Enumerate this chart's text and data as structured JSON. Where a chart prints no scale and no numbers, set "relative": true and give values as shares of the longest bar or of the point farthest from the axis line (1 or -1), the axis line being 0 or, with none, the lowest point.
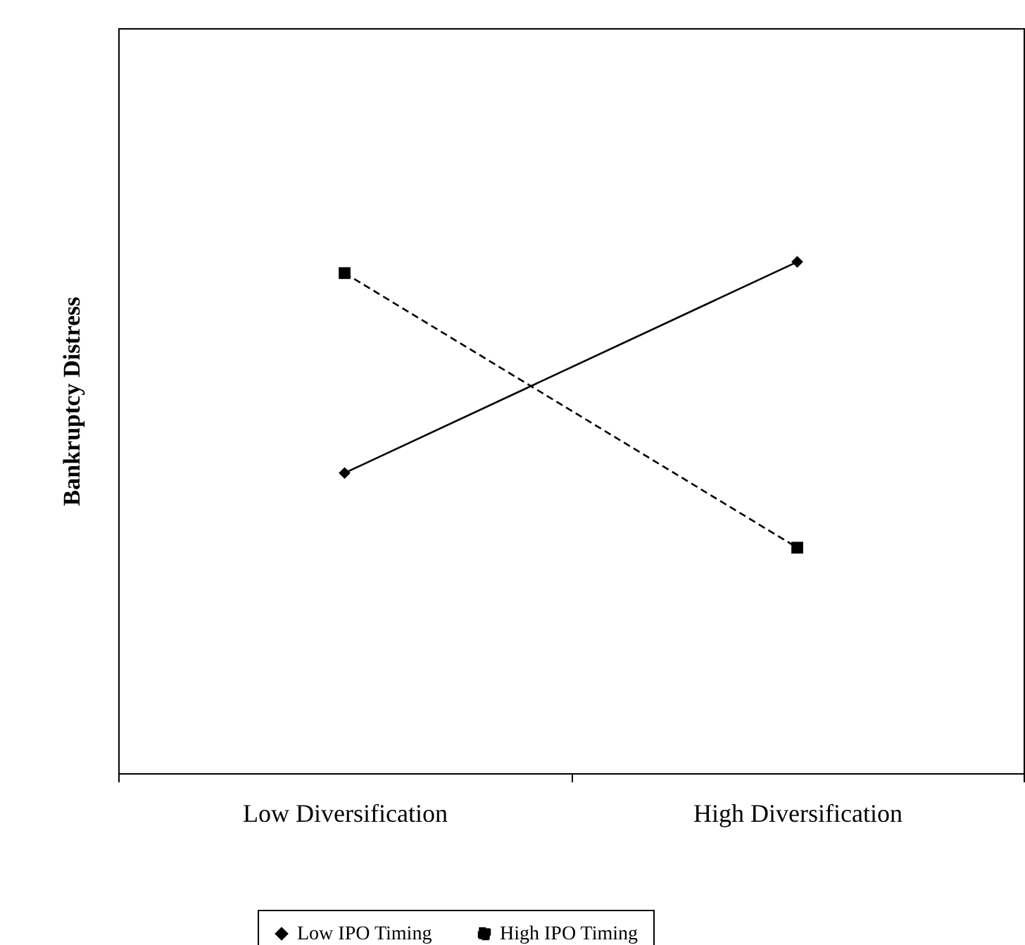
{
  "chart_data": {
    "type": "line",
    "relative": true,
    "ylabel": "Bankruptcy Distress",
    "categories": [
      "Low Diversification",
      "High Diversification"
    ],
    "legend": "bottom",
    "grid": false,
    "series": [
      {
        "name": "Low IPO Timing",
        "color": "#000000",
        "marker": "diamond",
        "line_style": "solid",
        "values": [
          0.587,
          1
        ]
      },
      {
        "name": "High IPO Timing",
        "color": "#000000",
        "marker": "square",
        "line_style": "dashed",
        "values": [
          0.978,
          0.441
        ]
      }
    ]
  }
}
